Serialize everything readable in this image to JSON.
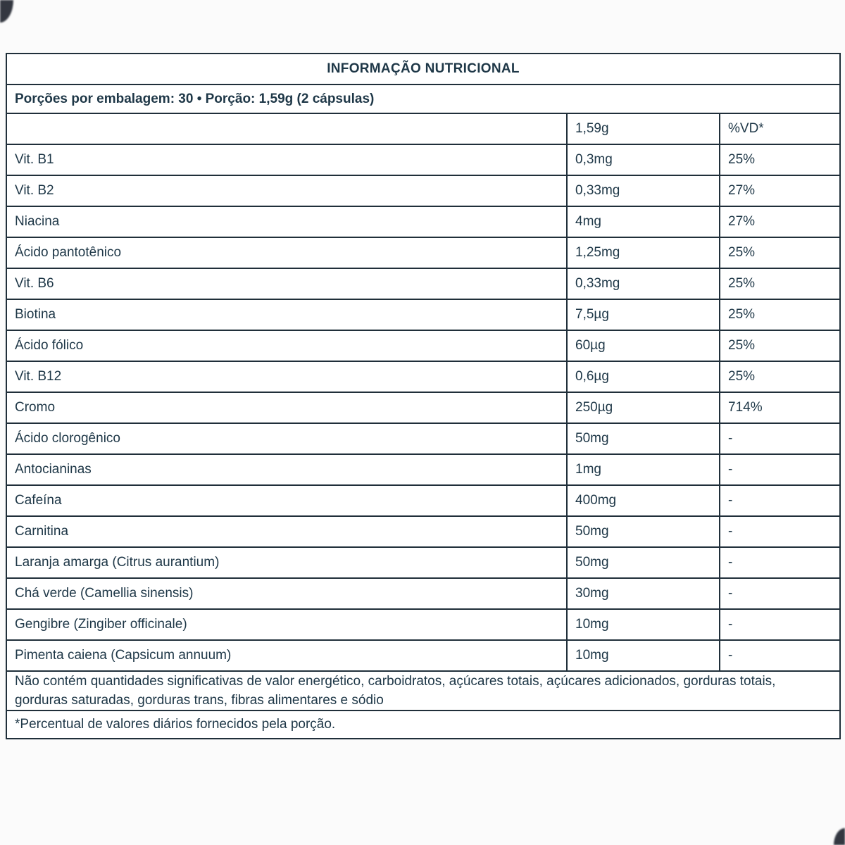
{
  "theme": {
    "text_color": "#1e3747",
    "border_color": "#202f3a",
    "background": "#fbfbfb",
    "table_background": "#ffffff",
    "corner_color": "#333740"
  },
  "table": {
    "title": "INFORMAÇÃO NUTRICIONAL",
    "servings_line": "Porções por embalagem: 30 • Porção: 1,59g (2 cápsulas)",
    "columns": {
      "nutrient": "",
      "amount": "1,59g",
      "daily_value": "%VD*"
    },
    "rows": [
      {
        "name": "Vit. B1",
        "amount": "0,3mg",
        "dv": "25%"
      },
      {
        "name": "Vit. B2",
        "amount": "0,33mg",
        "dv": "27%"
      },
      {
        "name": "Niacina",
        "amount": "4mg",
        "dv": "27%"
      },
      {
        "name": "Ácido pantotênico",
        "amount": "1,25mg",
        "dv": "25%"
      },
      {
        "name": "Vit. B6",
        "amount": "0,33mg",
        "dv": "25%"
      },
      {
        "name": "Biotina",
        "amount": "7,5µg",
        "dv": "25%"
      },
      {
        "name": "Ácido fólico",
        "amount": "60µg",
        "dv": "25%"
      },
      {
        "name": "Vit. B12",
        "amount": "0,6µg",
        "dv": "25%"
      },
      {
        "name": "Cromo",
        "amount": "250µg",
        "dv": "714%"
      },
      {
        "name": "Ácido clorogênico",
        "amount": "50mg",
        "dv": "-"
      },
      {
        "name": "Antocianinas",
        "amount": "1mg",
        "dv": "-"
      },
      {
        "name": "Cafeína",
        "amount": "400mg",
        "dv": "-"
      },
      {
        "name": "Carnitina",
        "amount": "50mg",
        "dv": "-"
      },
      {
        "name": "Laranja amarga (Citrus aurantium)",
        "amount": "50mg",
        "dv": "-"
      },
      {
        "name": "Chá verde (Camellia sinensis)",
        "amount": "30mg",
        "dv": "-"
      },
      {
        "name": "Gengibre (Zingiber officinale)",
        "amount": "10mg",
        "dv": "-"
      },
      {
        "name": "Pimenta caiena (Capsicum annuum)",
        "amount": "10mg",
        "dv": "-"
      }
    ],
    "no_significant_amounts_note": "Não contém quantidades significativas de valor energético, carboidratos, açúcares totais, açúcares adicionados, gorduras totais, gorduras saturadas, gorduras trans, fibras alimentares e sódio",
    "daily_value_note": "*Percentual de valores diários fornecidos pela porção."
  }
}
